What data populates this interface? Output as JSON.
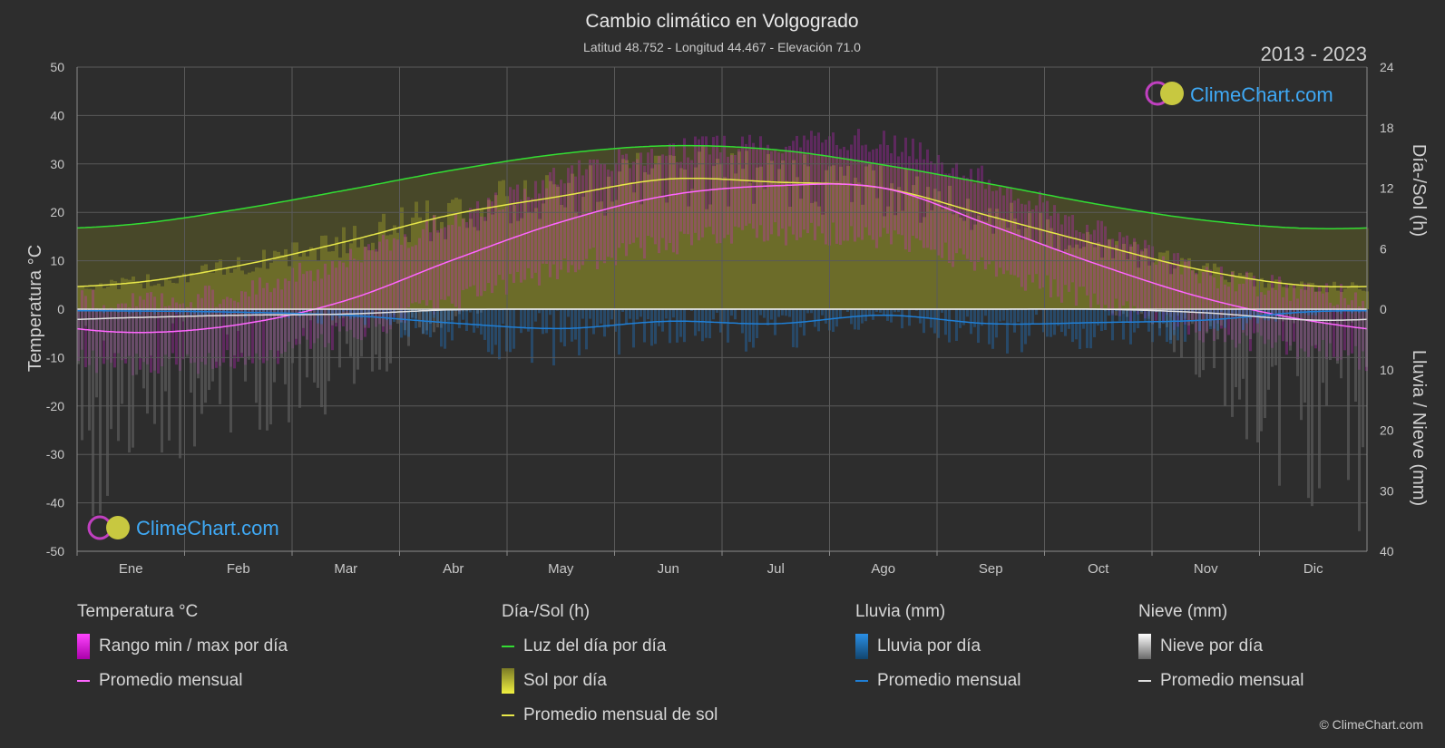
{
  "header": {
    "title": "Cambio climático en Volgogrado",
    "subtitle": "Latitud 48.752 - Longitud 44.467 - Elevación 71.0",
    "years": "2013 - 2023"
  },
  "logo_text": "ClimeChart.com",
  "copyright": "© ClimeChart.com",
  "legend": {
    "temperature": {
      "heading": "Temperatura °C",
      "range_label": "Rango min / max por día",
      "mean_label": "Promedio mensual"
    },
    "daylight": {
      "heading": "Día-/Sol (h)",
      "daylight_label": "Luz del día por día",
      "sun_label": "Sol por día",
      "sun_mean_label": "Promedio mensual de sol"
    },
    "rain": {
      "heading": "Lluvia (mm)",
      "rain_label": "Lluvia por día",
      "mean_label": "Promedio mensual"
    },
    "snow": {
      "heading": "Nieve (mm)",
      "snow_label": "Nieve por día",
      "mean_label": "Promedio mensual"
    }
  },
  "colors": {
    "background": "#2d2d2d",
    "grid": "#5a5a5a",
    "daylight": "#33dd33",
    "sunshine_mean": "#e8e84a",
    "sunshine_fill": "#8a8a2a",
    "temp_mean": "#ff66ff",
    "temp_range": "#dd22dd",
    "rain": "#1f7fd6",
    "snow": "#e0e0e0",
    "logo": "#3fa9f5"
  },
  "chart_data": {
    "type": "line",
    "categories": [
      "Ene",
      "Feb",
      "Mar",
      "Abr",
      "May",
      "Jun",
      "Jul",
      "Ago",
      "Sep",
      "Oct",
      "Nov",
      "Dic"
    ],
    "y_left": {
      "label": "Temperatura °C",
      "ticks": [
        "50",
        "40",
        "30",
        "20",
        "10",
        "0",
        "-10",
        "-20",
        "-30",
        "-40",
        "-50"
      ],
      "range": [
        -50,
        50
      ]
    },
    "y_right_top": {
      "label": "Día-/Sol (h)",
      "ticks": [
        "24",
        "18",
        "12",
        "6",
        "0"
      ],
      "range": [
        0,
        24
      ]
    },
    "y_right_bottom": {
      "label": "Lluvia / Nieve (mm)",
      "ticks": [
        "10",
        "20",
        "30",
        "40"
      ],
      "range": [
        0,
        40
      ]
    },
    "series": [
      {
        "name": "Luz del día por día",
        "axis": "hours",
        "values": [
          8.4,
          9.9,
          11.8,
          13.8,
          15.4,
          16.2,
          15.8,
          14.3,
          12.4,
          10.4,
          8.8,
          8.0
        ]
      },
      {
        "name": "Promedio mensual de sol",
        "axis": "hours",
        "values": [
          2.6,
          4.3,
          6.7,
          9.4,
          11.2,
          12.9,
          12.6,
          12.0,
          9.2,
          6.4,
          3.8,
          2.3
        ]
      },
      {
        "name": "Promedio mensual",
        "axis": "temperature",
        "values": [
          -4.8,
          -3.2,
          1.8,
          10.2,
          18.0,
          23.5,
          25.5,
          25.0,
          17.3,
          9.2,
          2.2,
          -2.5
        ]
      },
      {
        "name": "Promedio mensual",
        "axis": "rain_mm",
        "values": [
          0.3,
          0.5,
          1.0,
          2.3,
          3.2,
          2.0,
          2.4,
          1.0,
          2.4,
          2.2,
          1.8,
          0.4
        ]
      },
      {
        "name": "Promedio mensual",
        "axis": "snow_mm",
        "values": [
          1.4,
          1.0,
          0.8,
          0.1,
          0,
          0,
          0,
          0,
          0,
          0,
          0.6,
          1.8
        ]
      }
    ],
    "temp_range": {
      "min": [
        -9,
        -8,
        -3,
        4,
        11,
        16,
        18,
        17,
        11,
        4,
        -2,
        -6
      ],
      "max": [
        -1,
        1,
        8,
        16,
        25,
        30,
        32,
        32,
        24,
        14,
        5,
        1
      ]
    },
    "grid": true
  }
}
